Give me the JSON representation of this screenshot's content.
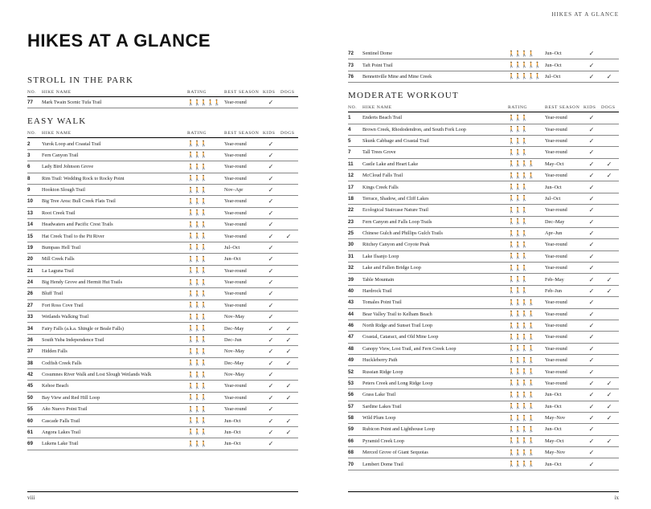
{
  "runningHead": "HIKES AT A GLANCE",
  "title": "HIKES AT A GLANCE",
  "pageLeftNum": "viii",
  "pageRightNum": "ix",
  "headers": {
    "no": "NO.",
    "name": "HIKE NAME",
    "rating": "RATING",
    "season": "BEST SEASON",
    "kids": "KIDS",
    "dogs": "DOGS"
  },
  "ratingGlyph": "🚶",
  "checkGlyph": "✓",
  "sections": [
    {
      "title": "STROLL IN THE PARK",
      "rows": [
        {
          "no": "77",
          "name": "Mark Twain Scenic Tufa Trail",
          "rating": 5,
          "season": "Year-round",
          "kids": true,
          "dogs": false
        }
      ]
    },
    {
      "title": "EASY WALK",
      "rows": [
        {
          "no": "2",
          "name": "Yurok Loop and Coastal Trail",
          "rating": 3,
          "season": "Year-round",
          "kids": true,
          "dogs": false
        },
        {
          "no": "3",
          "name": "Fern Canyon Trail",
          "rating": 3,
          "season": "Year-round",
          "kids": true,
          "dogs": false
        },
        {
          "no": "6",
          "name": "Lady Bird Johnson Grove",
          "rating": 3,
          "season": "Year-round",
          "kids": true,
          "dogs": false
        },
        {
          "no": "8",
          "name": "Rim Trail: Wedding Rock to Rocky Point",
          "rating": 3,
          "season": "Year-round",
          "kids": true,
          "dogs": false
        },
        {
          "no": "9",
          "name": "Hookton Slough Trail",
          "rating": 3,
          "season": "Nov–Apr",
          "kids": true,
          "dogs": false
        },
        {
          "no": "10",
          "name": "Big Tree Area: Bull Creek Flats Trail",
          "rating": 3,
          "season": "Year-round",
          "kids": true,
          "dogs": false
        },
        {
          "no": "13",
          "name": "Root Creek Trail",
          "rating": 3,
          "season": "Year-round",
          "kids": true,
          "dogs": false
        },
        {
          "no": "14",
          "name": "Headwaters and Pacific Crest Trails",
          "rating": 3,
          "season": "Year-round",
          "kids": true,
          "dogs": false
        },
        {
          "no": "15",
          "name": "Hat Creek Trail to the Pit River",
          "rating": 3,
          "season": "Year-round",
          "kids": true,
          "dogs": true
        },
        {
          "no": "19",
          "name": "Bumpass Hell Trail",
          "rating": 3,
          "season": "Jul–Oct",
          "kids": true,
          "dogs": false
        },
        {
          "no": "20",
          "name": "Mill Creek Falls",
          "rating": 3,
          "season": "Jun–Oct",
          "kids": true,
          "dogs": false
        },
        {
          "no": "21",
          "name": "La Laguna Trail",
          "rating": 3,
          "season": "Year-round",
          "kids": true,
          "dogs": false
        },
        {
          "no": "24",
          "name": "Big Hendy Grove and Hermit Hut Trails",
          "rating": 3,
          "season": "Year-round",
          "kids": true,
          "dogs": false
        },
        {
          "no": "26",
          "name": "Bluff Trail",
          "rating": 3,
          "season": "Year-round",
          "kids": true,
          "dogs": false
        },
        {
          "no": "27",
          "name": "Fort Ross Cove Trail",
          "rating": 3,
          "season": "Year-round",
          "kids": true,
          "dogs": false
        },
        {
          "no": "33",
          "name": "Wetlands Walking Trail",
          "rating": 3,
          "season": "Nov–May",
          "kids": true,
          "dogs": false
        },
        {
          "no": "34",
          "name": "Fairy Falls (a.k.a. Shingle or Beale Falls)",
          "rating": 3,
          "season": "Dec–May",
          "kids": true,
          "dogs": true
        },
        {
          "no": "36",
          "name": "South Yuba Independence Trail",
          "rating": 3,
          "season": "Dec–Jun",
          "kids": true,
          "dogs": true
        },
        {
          "no": "37",
          "name": "Hidden Falls",
          "rating": 3,
          "season": "Nov–May",
          "kids": true,
          "dogs": true
        },
        {
          "no": "38",
          "name": "Codfish Creek Falls",
          "rating": 3,
          "season": "Dec–May",
          "kids": true,
          "dogs": true
        },
        {
          "no": "42",
          "name": "Cosumnes River Walk and Lost Slough Wetlands Walk",
          "rating": 3,
          "season": "Nov–May",
          "kids": true,
          "dogs": false
        },
        {
          "no": "45",
          "name": "Kehoe Beach",
          "rating": 3,
          "season": "Year-round",
          "kids": true,
          "dogs": true
        },
        {
          "no": "50",
          "name": "Bay View and Red Hill Loop",
          "rating": 3,
          "season": "Year-round",
          "kids": true,
          "dogs": true
        },
        {
          "no": "55",
          "name": "Año Nuevo Point Trail",
          "rating": 3,
          "season": "Year-round",
          "kids": true,
          "dogs": false
        },
        {
          "no": "60",
          "name": "Cascade Falls Trail",
          "rating": 3,
          "season": "Jun–Oct",
          "kids": true,
          "dogs": true
        },
        {
          "no": "61",
          "name": "Angora Lakes Trail",
          "rating": 3,
          "season": "Jun–Oct",
          "kids": true,
          "dogs": true
        },
        {
          "no": "69",
          "name": "Lukens Lake Trail",
          "rating": 3,
          "season": "Jun–Oct",
          "kids": true,
          "dogs": false
        }
      ]
    }
  ],
  "rightTopRows": [
    {
      "no": "72",
      "name": "Sentinel Dome",
      "rating": 4,
      "season": "Jun–Oct",
      "kids": true,
      "dogs": false
    },
    {
      "no": "73",
      "name": "Taft Point Trail",
      "rating": 5,
      "season": "Jun–Oct",
      "kids": true,
      "dogs": false
    },
    {
      "no": "76",
      "name": "Bennettville Mine and Mine Creek",
      "rating": 5,
      "season": "Jul–Oct",
      "kids": true,
      "dogs": true
    }
  ],
  "rightSection": {
    "title": "MODERATE WORKOUT",
    "rows": [
      {
        "no": "1",
        "name": "Enderts Beach Trail",
        "rating": 3,
        "season": "Year-round",
        "kids": true,
        "dogs": false
      },
      {
        "no": "4",
        "name": "Brown Creek, Rhododendron, and South Fork Loop",
        "rating": 3,
        "season": "Year-round",
        "kids": true,
        "dogs": false
      },
      {
        "no": "5",
        "name": "Skunk Cabbage and Coastal Trail",
        "rating": 3,
        "season": "Year-round",
        "kids": true,
        "dogs": false
      },
      {
        "no": "7",
        "name": "Tall Trees Grove",
        "rating": 3,
        "season": "Year-round",
        "kids": true,
        "dogs": false
      },
      {
        "no": "11",
        "name": "Castle Lake and Heart Lake",
        "rating": 4,
        "season": "May–Oct",
        "kids": true,
        "dogs": true
      },
      {
        "no": "12",
        "name": "McCloud Falls Trail",
        "rating": 4,
        "season": "Year-round",
        "kids": true,
        "dogs": true
      },
      {
        "no": "17",
        "name": "Kings Creek Falls",
        "rating": 3,
        "season": "Jun–Oct",
        "kids": true,
        "dogs": false
      },
      {
        "no": "18",
        "name": "Terrace, Shadow, and Cliff Lakes",
        "rating": 3,
        "season": "Jul–Oct",
        "kids": true,
        "dogs": false
      },
      {
        "no": "22",
        "name": "Ecological Staircase Nature Trail",
        "rating": 3,
        "season": "Year-round",
        "kids": true,
        "dogs": false
      },
      {
        "no": "23",
        "name": "Fern Canyon and Falls Loop Trails",
        "rating": 3,
        "season": "Dec–May",
        "kids": true,
        "dogs": false
      },
      {
        "no": "25",
        "name": "Chinese Gulch and Phillips Gulch Trails",
        "rating": 3,
        "season": "Apr–Jun",
        "kids": true,
        "dogs": false
      },
      {
        "no": "30",
        "name": "Ritchey Canyon and Coyote Peak",
        "rating": 3,
        "season": "Year-round",
        "kids": true,
        "dogs": false
      },
      {
        "no": "31",
        "name": "Lake Ilsanjo Loop",
        "rating": 3,
        "season": "Year-round",
        "kids": true,
        "dogs": false
      },
      {
        "no": "32",
        "name": "Lake and Fallen Bridge Loop",
        "rating": 3,
        "season": "Year-round",
        "kids": true,
        "dogs": false
      },
      {
        "no": "39",
        "name": "Table Mountain",
        "rating": 3,
        "season": "Feb–May",
        "kids": true,
        "dogs": true
      },
      {
        "no": "40",
        "name": "Hardrock Trail",
        "rating": 3,
        "season": "Feb–Jun",
        "kids": true,
        "dogs": true
      },
      {
        "no": "43",
        "name": "Tomales Point Trail",
        "rating": 4,
        "season": "Year-round",
        "kids": true,
        "dogs": false
      },
      {
        "no": "44",
        "name": "Bear Valley Trail to Kelham Beach",
        "rating": 4,
        "season": "Year-round",
        "kids": true,
        "dogs": false
      },
      {
        "no": "46",
        "name": "North Ridge and Sunset Trail Loop",
        "rating": 4,
        "season": "Year-round",
        "kids": true,
        "dogs": false
      },
      {
        "no": "47",
        "name": "Coastal, Cataract, and Old Mine Loop",
        "rating": 4,
        "season": "Year-round",
        "kids": true,
        "dogs": false
      },
      {
        "no": "48",
        "name": "Canopy View, Lost Trail, and Fern Creek Loop",
        "rating": 4,
        "season": "Year-round",
        "kids": true,
        "dogs": false
      },
      {
        "no": "49",
        "name": "Huckleberry Path",
        "rating": 4,
        "season": "Year-round",
        "kids": true,
        "dogs": false
      },
      {
        "no": "52",
        "name": "Russian Ridge Loop",
        "rating": 4,
        "season": "Year-round",
        "kids": true,
        "dogs": false
      },
      {
        "no": "53",
        "name": "Peters Creek and Long Ridge Loop",
        "rating": 4,
        "season": "Year-round",
        "kids": true,
        "dogs": true
      },
      {
        "no": "56",
        "name": "Grass Lake Trail",
        "rating": 4,
        "season": "Jun–Oct",
        "kids": true,
        "dogs": true
      },
      {
        "no": "57",
        "name": "Sardine Lakes Trail",
        "rating": 4,
        "season": "Jun–Oct",
        "kids": true,
        "dogs": true
      },
      {
        "no": "58",
        "name": "Wild Plum Loop",
        "rating": 4,
        "season": "May–Nov",
        "kids": true,
        "dogs": true
      },
      {
        "no": "59",
        "name": "Rubicon Point and Lighthouse Loop",
        "rating": 4,
        "season": "Jun–Oct",
        "kids": true,
        "dogs": false
      },
      {
        "no": "66",
        "name": "Pyramid Creek Loop",
        "rating": 4,
        "season": "May–Oct",
        "kids": true,
        "dogs": true
      },
      {
        "no": "68",
        "name": "Merced Grove of Giant Sequoias",
        "rating": 4,
        "season": "May–Nov",
        "kids": true,
        "dogs": false
      },
      {
        "no": "70",
        "name": "Lembert Dome Trail",
        "rating": 4,
        "season": "Jun–Oct",
        "kids": true,
        "dogs": false
      }
    ]
  }
}
